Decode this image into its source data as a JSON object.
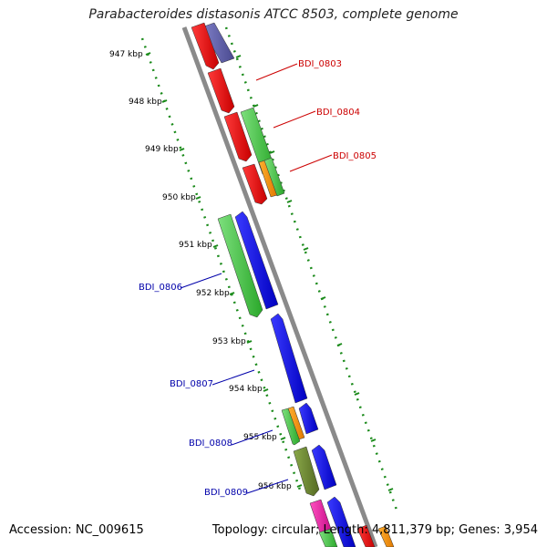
{
  "title": "Parabacteroides distasonis ATCC 8503, complete genome",
  "footer": {
    "accession": "Accession: NC_009615",
    "topology": "Topology: circular; Length: 4,811,379 bp; Genes: 3,954"
  },
  "colors": {
    "backbone": "#8a8a8a",
    "tick": "#1a8a1a",
    "red_label": "#cc0000",
    "blue_label": "#0000aa"
  },
  "ticks": [
    "947 kbp",
    "948 kbp",
    "949 kbp",
    "950 kbp",
    "951 kbp",
    "952 kbp",
    "953 kbp",
    "954 kbp",
    "955 kbp",
    "956 kbp"
  ],
  "gene_labels": [
    {
      "name": "BDI_0803",
      "color": "red"
    },
    {
      "name": "BDI_0804",
      "color": "red"
    },
    {
      "name": "BDI_0805",
      "color": "red"
    },
    {
      "name": "BDI_0806",
      "color": "blue"
    },
    {
      "name": "BDI_0807",
      "color": "blue"
    },
    {
      "name": "BDI_0808",
      "color": "blue"
    },
    {
      "name": "BDI_0809",
      "color": "blue"
    }
  ]
}
